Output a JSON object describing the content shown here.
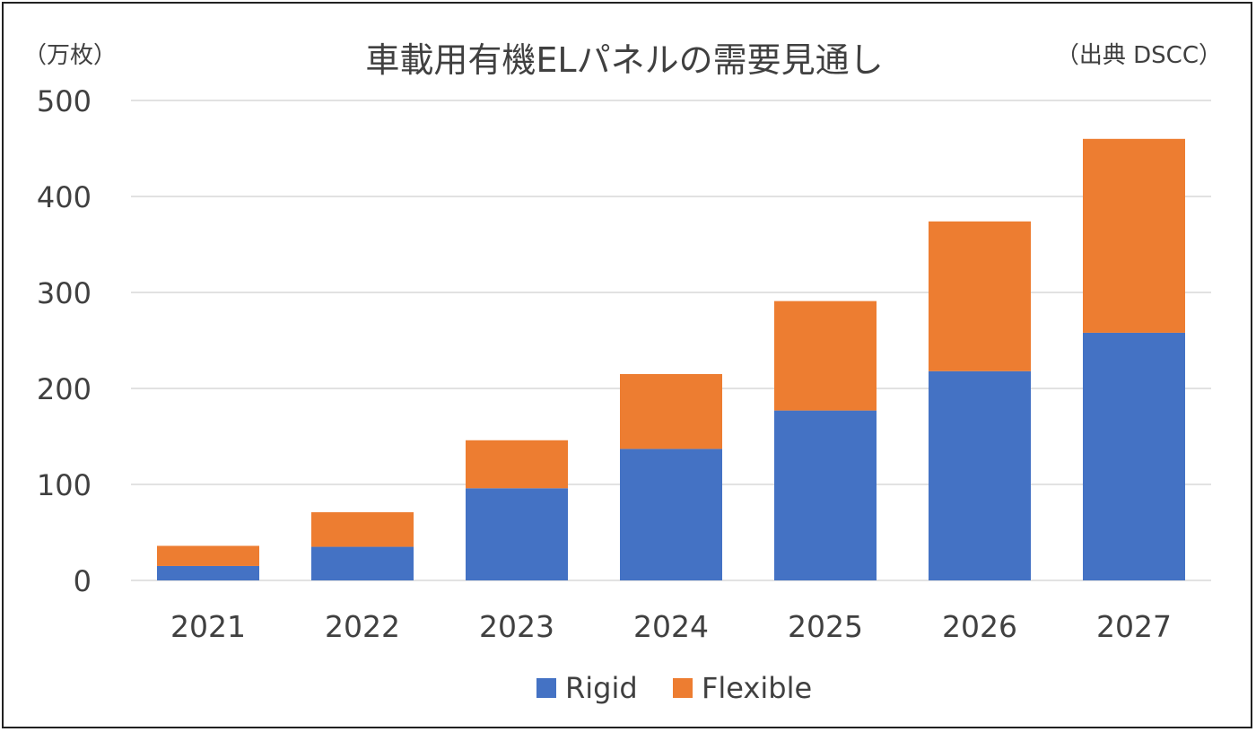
{
  "chart_data": {
    "type": "bar",
    "stacked": true,
    "title": "車載用有機ELパネルの需要見通し",
    "unit_label": "（万枚）",
    "source_label": "（出典 DSCC）",
    "categories": [
      "2021",
      "2022",
      "2023",
      "2024",
      "2025",
      "2026",
      "2027"
    ],
    "series": [
      {
        "name": "Rigid",
        "color": "#4472C4",
        "values": [
          15,
          35,
          96,
          137,
          177,
          218,
          258
        ]
      },
      {
        "name": "Flexible",
        "color": "#ED7D31",
        "values": [
          21,
          36,
          50,
          78,
          114,
          156,
          202
        ]
      }
    ],
    "ylim": [
      0,
      500
    ],
    "yticks": [
      "0",
      "100",
      "200",
      "300",
      "400",
      "500"
    ],
    "grid": true,
    "legend_position": "bottom"
  }
}
